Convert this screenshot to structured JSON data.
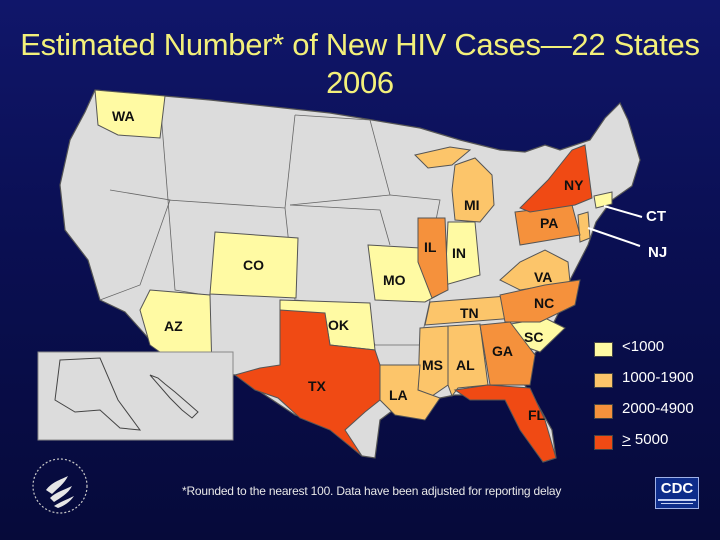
{
  "title": "Estimated Number* of New HIV Cases—22 States 2006",
  "title_lines": [
    "Estimated Number* of New HIV Cases—22 States",
    "2006"
  ],
  "footnote": "*Rounded to the nearest 100. Data have been adjusted for reporting delay",
  "colors": {
    "background": "#0a0f4a",
    "title": "#f3f07a",
    "no_data": "#dcdcdc",
    "lt1000": "#fffaa3",
    "r1000_1900": "#fcc56a",
    "r2000_4900": "#f5913c",
    "ge5000": "#f04a14"
  },
  "legend": [
    {
      "label": "<1000",
      "color": "#fffaa3"
    },
    {
      "label": "1000-1900",
      "color": "#fcc56a"
    },
    {
      "label": "2000-4900",
      "color": "#f5913c"
    },
    {
      "label": "> 5000",
      "color": "#f04a14"
    }
  ],
  "states": {
    "WA": {
      "label": "WA",
      "category": "<1000"
    },
    "CO": {
      "label": "CO",
      "category": "<1000"
    },
    "AZ": {
      "label": "AZ",
      "category": "<1000"
    },
    "OK": {
      "label": "OK",
      "category": "<1000"
    },
    "MO": {
      "label": "MO",
      "category": "<1000"
    },
    "IN": {
      "label": "IN",
      "category": "<1000"
    },
    "SC": {
      "label": "SC",
      "category": "<1000"
    },
    "CT": {
      "label": "CT",
      "category": "<1000"
    },
    "MI": {
      "label": "MI",
      "category": "1000-1900"
    },
    "VA": {
      "label": "VA",
      "category": "1000-1900"
    },
    "TN": {
      "label": "TN",
      "category": "1000-1900"
    },
    "MS": {
      "label": "MS",
      "category": "1000-1900"
    },
    "AL": {
      "label": "AL",
      "category": "1000-1900"
    },
    "LA": {
      "label": "LA",
      "category": "1000-1900"
    },
    "NJ": {
      "label": "NJ",
      "category": "1000-1900"
    },
    "IL": {
      "label": "IL",
      "category": "2000-4900"
    },
    "PA": {
      "label": "PA",
      "category": "2000-4900"
    },
    "NC": {
      "label": "NC",
      "category": "2000-4900"
    },
    "GA": {
      "label": "GA",
      "category": "2000-4900"
    },
    "NY": {
      "label": "NY",
      "category": "> 5000"
    },
    "TX": {
      "label": "TX",
      "category": "> 5000"
    },
    "FL": {
      "label": "FL",
      "category": "> 5000"
    }
  },
  "logos": {
    "cdc": "CDC",
    "hhs": "hhs-eagle-seal"
  }
}
